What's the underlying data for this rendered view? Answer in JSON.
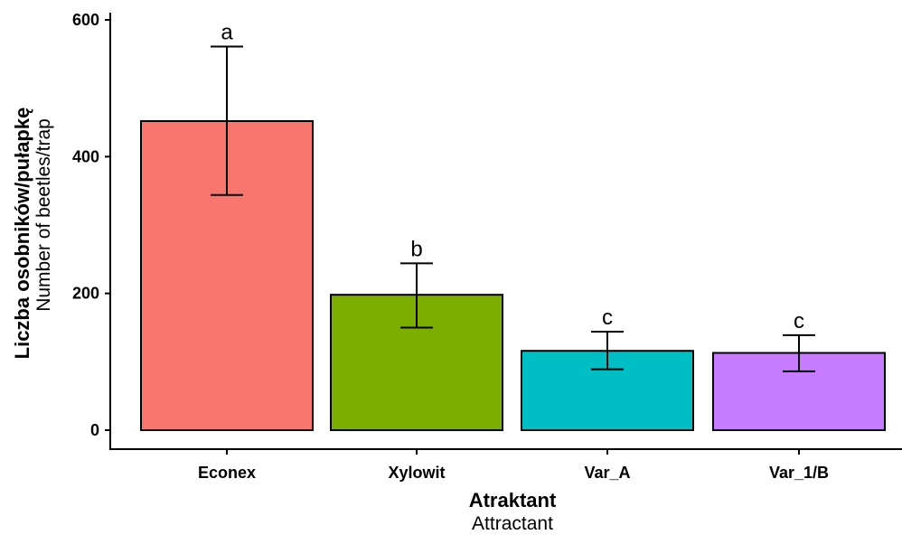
{
  "chart_data": {
    "type": "bar",
    "categories": [
      "Econex",
      "Xylowit",
      "Var_A",
      "Var_1/B"
    ],
    "values": [
      452,
      198,
      116,
      113
    ],
    "error_low": [
      344,
      150,
      89,
      86
    ],
    "error_high": [
      561,
      244,
      144,
      139
    ],
    "significance_labels": [
      "a",
      "b",
      "c",
      "c"
    ],
    "colors": [
      "#F8766D",
      "#7CAE00",
      "#00BFC4",
      "#C77CFF"
    ],
    "xlabel": "Atraktant",
    "xlabel_sub": "Attractant",
    "ylabel": "Liczba osobników/pułapkę",
    "ylabel_sub": "Number of beetles/trap",
    "ylim": [
      0,
      600
    ],
    "yticks": [
      0,
      200,
      400,
      600
    ],
    "grid": false
  }
}
